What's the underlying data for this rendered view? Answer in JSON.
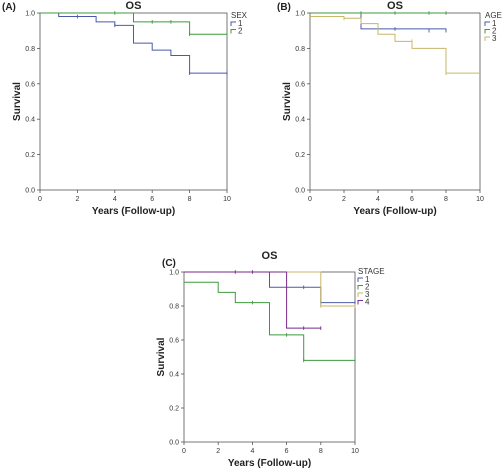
{
  "chart_data": [
    {
      "type": "line",
      "panel": "(A)",
      "title": "OS",
      "xlabel": "Years (Follow-up)",
      "ylabel": "Survival",
      "xlim": [
        0,
        10
      ],
      "ylim": [
        0,
        1
      ],
      "x_ticks": [
        "0",
        "2",
        "4",
        "6",
        "8",
        "10"
      ],
      "y_ticks": [
        "0.0",
        "0.2",
        "0.4",
        "0.6",
        "0.8",
        "1.0"
      ],
      "legend_title": "SEX",
      "legend_position": "top-right",
      "series": [
        {
          "name": "1",
          "color": "#4a5aa8",
          "steps": [
            [
              0,
              1.0
            ],
            [
              1,
              0.98
            ],
            [
              3,
              0.95
            ],
            [
              4,
              0.93
            ],
            [
              5,
              0.83
            ],
            [
              6,
              0.79
            ],
            [
              7,
              0.76
            ],
            [
              8,
              0.66
            ],
            [
              10,
              0.66
            ]
          ],
          "censors": [
            [
              2,
              0.98
            ],
            [
              4,
              0.93
            ],
            [
              8,
              0.66
            ],
            [
              10,
              0.66
            ]
          ]
        },
        {
          "name": "2",
          "color": "#3f9a3f",
          "steps": [
            [
              0,
              1.0
            ],
            [
              5,
              0.95
            ],
            [
              8,
              0.88
            ],
            [
              10,
              0.88
            ]
          ],
          "censors": [
            [
              4,
              1.0
            ],
            [
              6,
              0.95
            ],
            [
              7,
              0.95
            ],
            [
              8,
              0.88
            ],
            [
              10,
              0.88
            ]
          ]
        }
      ]
    },
    {
      "type": "line",
      "panel": "(B)",
      "title": "OS",
      "xlabel": "Years (Follow-up)",
      "ylabel": "Survival",
      "xlim": [
        0,
        10
      ],
      "ylim": [
        0,
        1
      ],
      "x_ticks": [
        "0",
        "2",
        "4",
        "6",
        "8",
        "10"
      ],
      "y_ticks": [
        "0.0",
        "0.2",
        "0.4",
        "0.6",
        "0.8",
        "1.0"
      ],
      "legend_title": "AGE",
      "legend_position": "top-right",
      "series": [
        {
          "name": "1",
          "color": "#4a5aa8",
          "steps": [
            [
              0,
              1.0
            ],
            [
              3,
              0.91
            ],
            [
              8,
              0.9
            ]
          ],
          "censors": [
            [
              5,
              0.91
            ],
            [
              7,
              0.9
            ],
            [
              8,
              0.9
            ]
          ]
        },
        {
          "name": "2",
          "color": "#3f9a3f",
          "steps": [
            [
              0,
              1.0
            ],
            [
              8,
              1.0
            ]
          ],
          "censors": [
            [
              3,
              1.0
            ],
            [
              5,
              1.0
            ],
            [
              7,
              1.0
            ],
            [
              8,
              1.0
            ]
          ]
        },
        {
          "name": "3",
          "color": "#c8b66a",
          "steps": [
            [
              0,
              0.98
            ],
            [
              2,
              0.97
            ],
            [
              3,
              0.94
            ],
            [
              4,
              0.88
            ],
            [
              5,
              0.84
            ],
            [
              6,
              0.8
            ],
            [
              8,
              0.66
            ],
            [
              10,
              0.66
            ]
          ],
          "censors": [
            [
              2,
              0.97
            ],
            [
              6,
              0.84
            ],
            [
              8,
              0.66
            ]
          ]
        }
      ]
    },
    {
      "type": "line",
      "panel": "(C)",
      "title": "OS",
      "xlabel": "Years (Follow-up)",
      "ylabel": "Survival",
      "xlim": [
        0,
        10
      ],
      "ylim": [
        0,
        1
      ],
      "x_ticks": [
        "0",
        "2",
        "4",
        "6",
        "8",
        "10"
      ],
      "y_ticks": [
        "0.0",
        "0.2",
        "0.4",
        "0.6",
        "0.8",
        "1.0"
      ],
      "legend_title": "STAGE",
      "legend_position": "top-right",
      "series": [
        {
          "name": "1",
          "color": "#4a5aa8",
          "steps": [
            [
              0,
              1.0
            ],
            [
              5,
              0.91
            ],
            [
              8,
              0.82
            ],
            [
              10,
              0.82
            ]
          ],
          "censors": [
            [
              7,
              0.91
            ],
            [
              8,
              0.82
            ],
            [
              10,
              0.82
            ]
          ]
        },
        {
          "name": "2",
          "color": "#3f9a3f",
          "steps": [
            [
              0,
              0.94
            ],
            [
              2,
              0.88
            ],
            [
              3,
              0.82
            ],
            [
              5,
              0.63
            ],
            [
              7,
              0.48
            ],
            [
              10,
              0.48
            ]
          ],
          "censors": [
            [
              4,
              0.82
            ],
            [
              6,
              0.63
            ],
            [
              7,
              0.48
            ],
            [
              10,
              0.48
            ]
          ]
        },
        {
          "name": "3",
          "color": "#c8b66a",
          "steps": [
            [
              0,
              1.0
            ],
            [
              8,
              0.8
            ],
            [
              10,
              0.8
            ]
          ],
          "censors": [
            [
              8,
              0.8
            ],
            [
              10,
              0.8
            ]
          ]
        },
        {
          "name": "4",
          "color": "#7a2a8a",
          "steps": [
            [
              0,
              1.0
            ],
            [
              6,
              0.67
            ],
            [
              8,
              0.67
            ]
          ],
          "censors": [
            [
              3,
              1.0
            ],
            [
              4,
              1.0
            ],
            [
              7,
              0.67
            ],
            [
              8,
              0.67
            ]
          ]
        }
      ]
    }
  ]
}
